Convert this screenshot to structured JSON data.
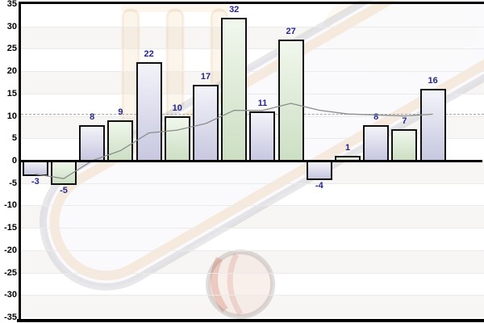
{
  "chart_data": {
    "type": "bar",
    "title": "",
    "xlabel": "",
    "ylabel": "",
    "x_axis_labels_visible": false,
    "values": [
      -3,
      -5,
      8,
      9,
      22,
      10,
      17,
      32,
      11,
      27,
      -4,
      1,
      8,
      7,
      16
    ],
    "bar_labels": [
      "-3",
      "-5",
      "8",
      "9",
      "22",
      "10",
      "17",
      "32",
      "11",
      "27",
      "-4",
      "1",
      "8",
      "7",
      "16"
    ],
    "series": [
      {
        "name": "bars",
        "values": [
          -3,
          -5,
          8,
          9,
          22,
          10,
          17,
          32,
          11,
          27,
          -4,
          1,
          8,
          7,
          16
        ]
      },
      {
        "name": "running-average-line",
        "values": [
          -3,
          -4,
          0,
          2.25,
          6.2,
          6.83,
          8.29,
          11.25,
          11.22,
          12.8,
          11.27,
          10.42,
          10.23,
          10.0,
          10.4
        ]
      }
    ],
    "mean_line_value": 10.4,
    "ylim": [
      -35,
      35
    ],
    "ytick_step": 5,
    "ytick_labels": [
      "35",
      "30",
      "25",
      "20",
      "15",
      "10",
      "5",
      "0",
      "-5",
      "-10",
      "-15",
      "-20",
      "-25",
      "-30",
      "-35"
    ],
    "grid": true,
    "legend_position": "none"
  },
  "colors": {
    "bar_border": "#101010",
    "bar_a_top": "#f3f3fa",
    "bar_a_bottom": "#c7c7e0",
    "bar_b_top": "#f1f7ed",
    "bar_b_bottom": "#ccdfc3",
    "value_label": "#26268c",
    "axis_label": "#000000",
    "axis_line": "#000000",
    "band_gray": "#f7f6f4",
    "band_white": "#ffffff",
    "gridline": "#ebebeb",
    "trend_line": "#8c8c8c",
    "mean_line": "#a6a6a6"
  },
  "watermark": {
    "theme": "cricket",
    "elements": [
      "cricket-stumps",
      "cricket-bat",
      "cricket-ball"
    ]
  }
}
